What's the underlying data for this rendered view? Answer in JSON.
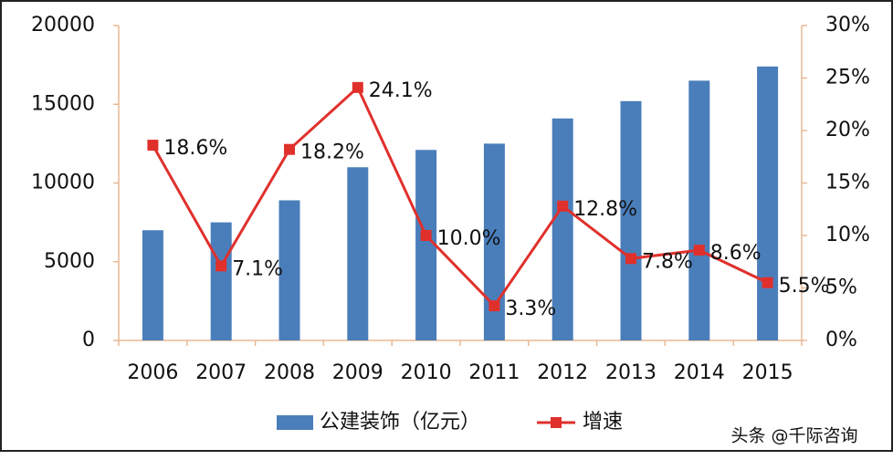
{
  "chart_data": {
    "type": "bar_line",
    "categories": [
      "2006",
      "2007",
      "2008",
      "2009",
      "2010",
      "2011",
      "2012",
      "2013",
      "2014",
      "2015"
    ],
    "series": [
      {
        "name": "公建装饰（亿元）",
        "type": "bar",
        "color": "#4a7ebb",
        "values": [
          7000,
          7500,
          8900,
          11000,
          12100,
          12500,
          14100,
          15200,
          16500,
          17400
        ]
      },
      {
        "name": "增速",
        "type": "line",
        "axis": "y2",
        "color": "#e0302c",
        "values": [
          18.6,
          7.1,
          18.2,
          24.1,
          10.0,
          3.3,
          12.8,
          7.8,
          8.6,
          5.5
        ],
        "value_labels": [
          "18.6%",
          "7.1%",
          "18.2%",
          "24.1%",
          "10.0%",
          "3.3%",
          "12.8%",
          "7.8%",
          "8.6%",
          "5.5%"
        ]
      }
    ],
    "ylim": [
      0,
      20000
    ],
    "yticks": [
      0,
      5000,
      10000,
      15000,
      20000
    ],
    "y2lim": [
      0,
      30
    ],
    "y2ticks": [
      {
        "value": 0,
        "label": "0%"
      },
      {
        "value": 5,
        "label": "5%"
      },
      {
        "value": 10,
        "label": "10%"
      },
      {
        "value": 15,
        "label": "15%"
      },
      {
        "value": 20,
        "label": "20%"
      },
      {
        "value": 25,
        "label": "25%"
      },
      {
        "value": 30,
        "label": "30%"
      }
    ],
    "legend": "bottom",
    "watermark": "头条 @千际咨询"
  }
}
